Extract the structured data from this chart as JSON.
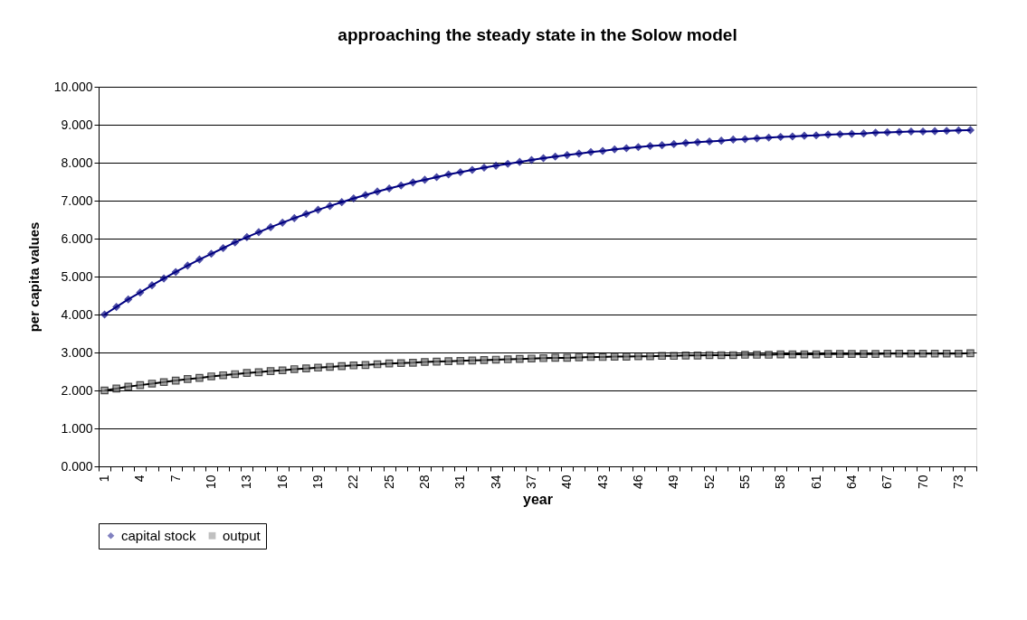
{
  "chart_data": {
    "type": "line",
    "title": "approaching the steady state in the Solow model",
    "xlabel": "year",
    "ylabel": "per capita values",
    "categories": [
      "1",
      null,
      null,
      "4",
      null,
      null,
      "7",
      null,
      null,
      "10",
      null,
      null,
      "13",
      null,
      null,
      "16",
      null,
      null,
      "19",
      null,
      null,
      "22",
      null,
      null,
      "25",
      null,
      null,
      "28",
      null,
      null,
      "31",
      null,
      null,
      "34",
      null,
      null,
      "37",
      null,
      null,
      "40",
      null,
      null,
      "43",
      null,
      null,
      "46",
      null,
      null,
      "49",
      null,
      null,
      "52",
      null,
      null,
      "55",
      null,
      null,
      "58",
      null,
      null,
      "61",
      null,
      null,
      "64",
      null,
      null,
      "67",
      null,
      null,
      "70",
      null,
      null,
      "73",
      null
    ],
    "series": [
      {
        "name": "capital stock",
        "color": "#000080",
        "marker": "diamond",
        "values": [
          4.0,
          4.2,
          4.4,
          4.58,
          4.77,
          4.95,
          5.12,
          5.29,
          5.45,
          5.6,
          5.75,
          5.9,
          6.04,
          6.17,
          6.3,
          6.42,
          6.54,
          6.65,
          6.76,
          6.86,
          6.96,
          7.06,
          7.15,
          7.24,
          7.32,
          7.4,
          7.48,
          7.55,
          7.62,
          7.69,
          7.75,
          7.81,
          7.87,
          7.92,
          7.97,
          8.02,
          8.07,
          8.12,
          8.16,
          8.2,
          8.24,
          8.28,
          8.31,
          8.35,
          8.38,
          8.41,
          8.44,
          8.46,
          8.49,
          8.52,
          8.54,
          8.56,
          8.58,
          8.61,
          8.62,
          8.64,
          8.66,
          8.68,
          8.69,
          8.71,
          8.72,
          8.74,
          8.75,
          8.76,
          8.77,
          8.79,
          8.8,
          8.81,
          8.82,
          8.82,
          8.83,
          8.84,
          8.85,
          8.86
        ]
      },
      {
        "name": "output",
        "color": "#808080",
        "marker": "square",
        "values": [
          2.0,
          2.05,
          2.1,
          2.14,
          2.18,
          2.22,
          2.26,
          2.3,
          2.33,
          2.37,
          2.4,
          2.43,
          2.46,
          2.48,
          2.51,
          2.53,
          2.56,
          2.58,
          2.6,
          2.62,
          2.64,
          2.66,
          2.67,
          2.69,
          2.71,
          2.72,
          2.73,
          2.75,
          2.76,
          2.77,
          2.78,
          2.79,
          2.8,
          2.81,
          2.82,
          2.83,
          2.84,
          2.85,
          2.86,
          2.86,
          2.87,
          2.88,
          2.88,
          2.89,
          2.89,
          2.9,
          2.9,
          2.91,
          2.91,
          2.92,
          2.92,
          2.93,
          2.93,
          2.93,
          2.94,
          2.94,
          2.94,
          2.95,
          2.95,
          2.95,
          2.95,
          2.96,
          2.96,
          2.96,
          2.96,
          2.96,
          2.97,
          2.97,
          2.97,
          2.97,
          2.97,
          2.97,
          2.97,
          2.98
        ]
      }
    ],
    "ylim": [
      0,
      10
    ],
    "yticks": [
      {
        "value": 0,
        "label": "0.000"
      },
      {
        "value": 1,
        "label": "1.000"
      },
      {
        "value": 2,
        "label": "2.000"
      },
      {
        "value": 3,
        "label": "3.000"
      },
      {
        "value": 4,
        "label": "4.000"
      },
      {
        "value": 5,
        "label": "5.000"
      },
      {
        "value": 6,
        "label": "6.000"
      },
      {
        "value": 7,
        "label": "7.000"
      },
      {
        "value": 8,
        "label": "8.000"
      },
      {
        "value": 9,
        "label": "9.000"
      },
      {
        "value": 10,
        "label": "10.000"
      }
    ],
    "grid": "y",
    "legend": "bottom"
  }
}
